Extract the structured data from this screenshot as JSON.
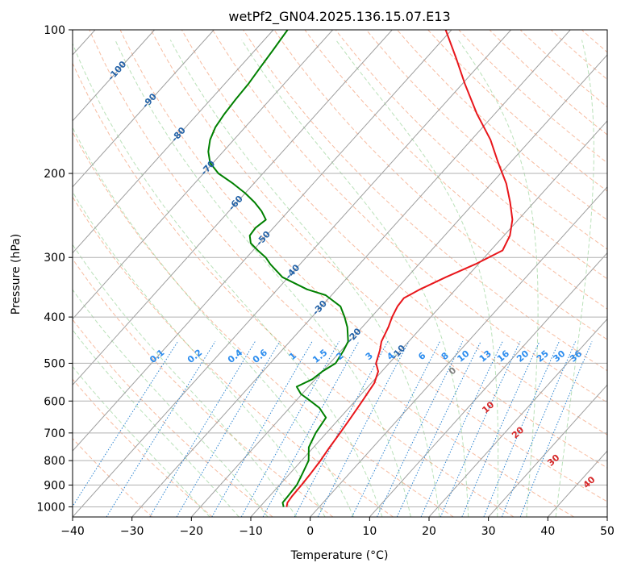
{
  "chart_data": {
    "type": "line",
    "subtype": "skew-T log-P diagram",
    "title": "wetPf2_GN04.2025.136.15.07.E13",
    "xlabel": "Temperature (°C)",
    "ylabel": "Pressure (hPa)",
    "xlim": [
      -40,
      50
    ],
    "ylim": [
      1050,
      100
    ],
    "y_scale": "log",
    "x_ticks": [
      -40,
      -30,
      -20,
      -10,
      0,
      10,
      20,
      30,
      40,
      50
    ],
    "y_ticks": [
      1000,
      900,
      800,
      700,
      600,
      500,
      400,
      300,
      200,
      100
    ],
    "grid": true,
    "isotherm_labels": [
      {
        "value": -100,
        "p": 122
      },
      {
        "value": -90,
        "p": 141
      },
      {
        "value": -80,
        "p": 166
      },
      {
        "value": -70,
        "p": 195
      },
      {
        "value": -60,
        "p": 231
      },
      {
        "value": -50,
        "p": 274
      },
      {
        "value": -40,
        "p": 322
      },
      {
        "value": -30,
        "p": 383
      },
      {
        "value": -20,
        "p": 438
      },
      {
        "value": -10,
        "p": 475
      }
    ],
    "mixing_ratio_labels": [
      "0.1",
      "0.2",
      "0.4",
      "0.6",
      "1",
      "1.5",
      "2",
      "3",
      "4",
      "6",
      "8",
      "10",
      "13",
      "16",
      "20",
      "25",
      "30",
      "36"
    ],
    "moist_adiabat_labels": [
      {
        "value": 0,
        "t": 24,
        "p": 520
      },
      {
        "value": 10,
        "t": 30,
        "p": 620
      },
      {
        "value": 20,
        "t": 35,
        "p": 700
      },
      {
        "value": 30,
        "t": 41,
        "p": 800
      },
      {
        "value": 40,
        "t": 47,
        "p": 890
      }
    ],
    "series": [
      {
        "color": "#e8161b",
        "pressure": [
          1000,
          980,
          950,
          900,
          850,
          800,
          750,
          700,
          650,
          600,
          550,
          520,
          500,
          470,
          450,
          420,
          400,
          380,
          365,
          350,
          330,
          310,
          290,
          270,
          250,
          230,
          210,
          190,
          170,
          150,
          130,
          115,
          100
        ],
        "temperature": [
          -5.5,
          -6.0,
          -6.2,
          -6.3,
          -6.5,
          -6.8,
          -7.3,
          -7.7,
          -8.2,
          -8.8,
          -9.5,
          -10.6,
          -12.2,
          -13.5,
          -14.6,
          -15.6,
          -16.5,
          -17.2,
          -17.4,
          -16.0,
          -13.5,
          -10.5,
          -8.0,
          -9.0,
          -11.0,
          -14.0,
          -17.5,
          -22.0,
          -26.8,
          -33.0,
          -39.5,
          -44.8,
          -51.0
        ]
      },
      {
        "color": "#008000",
        "pressure": [
          1000,
          980,
          950,
          900,
          850,
          800,
          750,
          700,
          650,
          620,
          600,
          580,
          560,
          540,
          520,
          500,
          470,
          450,
          420,
          400,
          380,
          360,
          350,
          330,
          310,
          300,
          290,
          280,
          270,
          260,
          250,
          240,
          230,
          220,
          210,
          200,
          190,
          180,
          170,
          160,
          150,
          140,
          130,
          120,
          110,
          100
        ],
        "temperature": [
          -6.0,
          -6.8,
          -6.9,
          -7.1,
          -7.9,
          -8.8,
          -10.8,
          -11.8,
          -12.4,
          -15.0,
          -17.5,
          -20.2,
          -22.0,
          -20.5,
          -20.0,
          -19.0,
          -19.6,
          -20.2,
          -22.5,
          -24.5,
          -26.8,
          -31.0,
          -35.0,
          -41.0,
          -45.0,
          -46.8,
          -49.2,
          -51.5,
          -52.8,
          -53.0,
          -52.5,
          -54.5,
          -57.0,
          -60.0,
          -63.5,
          -67.5,
          -70.5,
          -72.5,
          -74.0,
          -75.0,
          -75.5,
          -75.8,
          -76.0,
          -76.5,
          -77.0,
          -77.6
        ]
      }
    ]
  }
}
